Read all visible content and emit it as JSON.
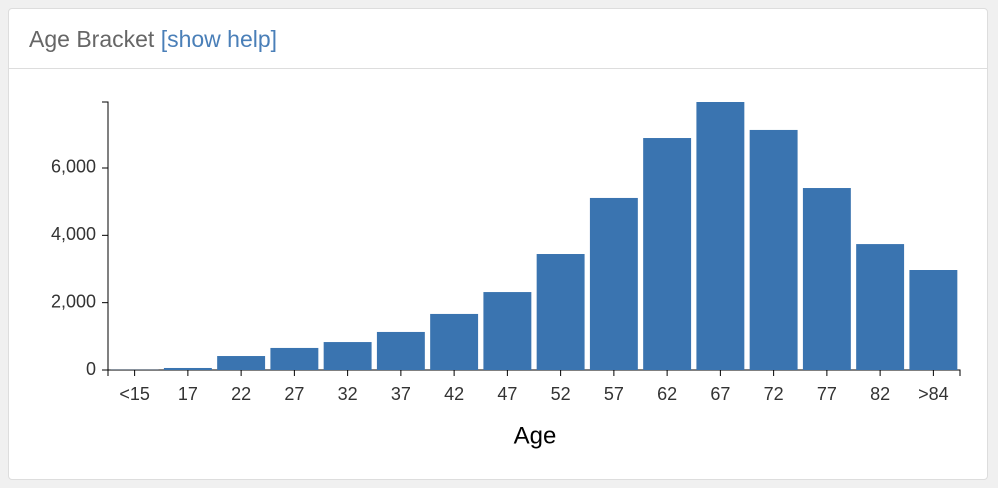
{
  "chart_data": {
    "type": "bar",
    "title": "Age Bracket",
    "help_link": "[show help]",
    "xlabel": "Age",
    "categories": [
      "<15",
      "17",
      "22",
      "27",
      "32",
      "37",
      "42",
      "47",
      "52",
      "57",
      "62",
      "67",
      "72",
      "77",
      "82",
      ">84"
    ],
    "values": [
      5,
      60,
      415,
      655,
      830,
      1130,
      1665,
      2315,
      3445,
      5110,
      6890,
      7960,
      7130,
      5405,
      3740,
      2970
    ],
    "color": "#3a74b0",
    "ylim": [
      0,
      7960
    ],
    "yticks": [
      0,
      {
        "value": 2000,
        "label": "2,000"
      },
      {
        "value": 4000,
        "label": "4,000"
      },
      {
        "value": 6000,
        "label": "6,000"
      }
    ]
  }
}
